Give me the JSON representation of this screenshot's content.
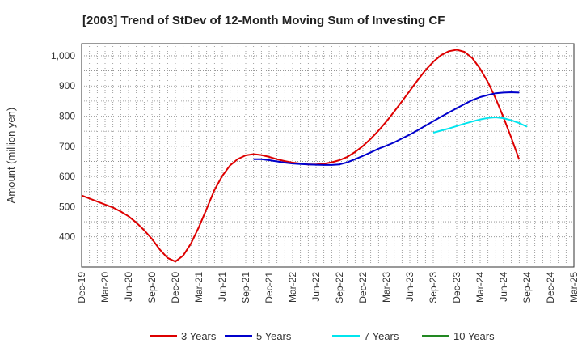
{
  "chart_data": {
    "type": "line",
    "title": "[2003]  Trend of StDev of 12-Month Moving Sum of Investing CF",
    "xlabel": "",
    "ylabel": "Amount (million yen)",
    "ylim": [
      300,
      1040
    ],
    "yticks": [
      400,
      500,
      600,
      700,
      800,
      900,
      1000
    ],
    "ytick_labels": [
      "400",
      "500",
      "600",
      "700",
      "800",
      "900",
      "1,000"
    ],
    "grid": true,
    "legend_position": "bottom",
    "x_start": "Dec-19",
    "x_end": "Mar-25",
    "x_tick_labels": [
      "Dec-19",
      "Mar-20",
      "Jun-20",
      "Sep-20",
      "Dec-20",
      "Mar-21",
      "Jun-21",
      "Sep-21",
      "Dec-21",
      "Mar-22",
      "Jun-22",
      "Sep-22",
      "Dec-22",
      "Mar-23",
      "Jun-23",
      "Sep-23",
      "Dec-23",
      "Mar-24",
      "Jun-24",
      "Sep-24",
      "Dec-24",
      "Mar-25"
    ],
    "series": [
      {
        "name": "3 Years",
        "color": "#dd0000",
        "points": [
          [
            "Dec-19",
            537
          ],
          [
            "Jan-20",
            527
          ],
          [
            "Feb-20",
            517
          ],
          [
            "Mar-20",
            507
          ],
          [
            "Apr-20",
            497
          ],
          [
            "May-20",
            484
          ],
          [
            "Jun-20",
            468
          ],
          [
            "Jul-20",
            447
          ],
          [
            "Aug-20",
            422
          ],
          [
            "Sep-20",
            393
          ],
          [
            "Oct-20",
            358
          ],
          [
            "Nov-20",
            330
          ],
          [
            "Dec-20",
            318
          ],
          [
            "Jan-21",
            338
          ],
          [
            "Feb-21",
            378
          ],
          [
            "Mar-21",
            432
          ],
          [
            "Apr-21",
            493
          ],
          [
            "May-21",
            555
          ],
          [
            "Jun-21",
            602
          ],
          [
            "Jul-21",
            637
          ],
          [
            "Aug-21",
            658
          ],
          [
            "Sep-21",
            670
          ],
          [
            "Oct-21",
            674
          ],
          [
            "Nov-21",
            671
          ],
          [
            "Dec-21",
            665
          ],
          [
            "Jan-22",
            657
          ],
          [
            "Feb-22",
            651
          ],
          [
            "Mar-22",
            646
          ],
          [
            "Apr-22",
            643
          ],
          [
            "May-22",
            640
          ],
          [
            "Jun-22",
            640
          ],
          [
            "Jul-22",
            642
          ],
          [
            "Aug-22",
            647
          ],
          [
            "Sep-22",
            654
          ],
          [
            "Oct-22",
            665
          ],
          [
            "Nov-22",
            681
          ],
          [
            "Dec-22",
            701
          ],
          [
            "Jan-23",
            725
          ],
          [
            "Feb-23",
            752
          ],
          [
            "Mar-23",
            782
          ],
          [
            "Apr-23",
            815
          ],
          [
            "May-23",
            849
          ],
          [
            "Jun-23",
            884
          ],
          [
            "Jul-23",
            919
          ],
          [
            "Aug-23",
            952
          ],
          [
            "Sep-23",
            980
          ],
          [
            "Oct-23",
            1002
          ],
          [
            "Nov-23",
            1015
          ],
          [
            "Dec-23",
            1020
          ],
          [
            "Jan-24",
            1013
          ],
          [
            "Feb-24",
            992
          ],
          [
            "Mar-24",
            957
          ],
          [
            "Apr-24",
            912
          ],
          [
            "May-24",
            858
          ],
          [
            "Jun-24",
            795
          ],
          [
            "Jul-24",
            727
          ],
          [
            "Aug-24",
            656
          ]
        ]
      },
      {
        "name": "5 Years",
        "color": "#0000cc",
        "points": [
          [
            "Oct-21",
            657
          ],
          [
            "Nov-21",
            657
          ],
          [
            "Dec-21",
            654
          ],
          [
            "Jan-22",
            650
          ],
          [
            "Feb-22",
            646
          ],
          [
            "Mar-22",
            643
          ],
          [
            "Apr-22",
            641
          ],
          [
            "May-22",
            640
          ],
          [
            "Jun-22",
            639
          ],
          [
            "Jul-22",
            638
          ],
          [
            "Aug-22",
            638
          ],
          [
            "Sep-22",
            640
          ],
          [
            "Oct-22",
            647
          ],
          [
            "Nov-22",
            657
          ],
          [
            "Dec-22",
            668
          ],
          [
            "Jan-23",
            680
          ],
          [
            "Feb-23",
            692
          ],
          [
            "Mar-23",
            702
          ],
          [
            "Apr-23",
            713
          ],
          [
            "May-23",
            726
          ],
          [
            "Jun-23",
            739
          ],
          [
            "Jul-23",
            753
          ],
          [
            "Aug-23",
            768
          ],
          [
            "Sep-23",
            783
          ],
          [
            "Oct-23",
            798
          ],
          [
            "Nov-23",
            812
          ],
          [
            "Dec-23",
            826
          ],
          [
            "Jan-24",
            840
          ],
          [
            "Feb-24",
            853
          ],
          [
            "Mar-24",
            863
          ],
          [
            "Apr-24",
            870
          ],
          [
            "May-24",
            876
          ],
          [
            "Jun-24",
            878
          ],
          [
            "Jul-24",
            879
          ],
          [
            "Aug-24",
            878
          ]
        ]
      },
      {
        "name": "7 Years",
        "color": "#00e5ee",
        "points": [
          [
            "Sep-23",
            745
          ],
          [
            "Oct-23",
            752
          ],
          [
            "Nov-23",
            759
          ],
          [
            "Dec-23",
            767
          ],
          [
            "Jan-24",
            775
          ],
          [
            "Feb-24",
            782
          ],
          [
            "Mar-24",
            789
          ],
          [
            "Apr-24",
            794
          ],
          [
            "May-24",
            796
          ],
          [
            "Jun-24",
            793
          ],
          [
            "Jul-24",
            786
          ],
          [
            "Aug-24",
            777
          ],
          [
            "Sep-24",
            765
          ]
        ]
      },
      {
        "name": "10 Years",
        "color": "#228822",
        "points": []
      }
    ]
  }
}
